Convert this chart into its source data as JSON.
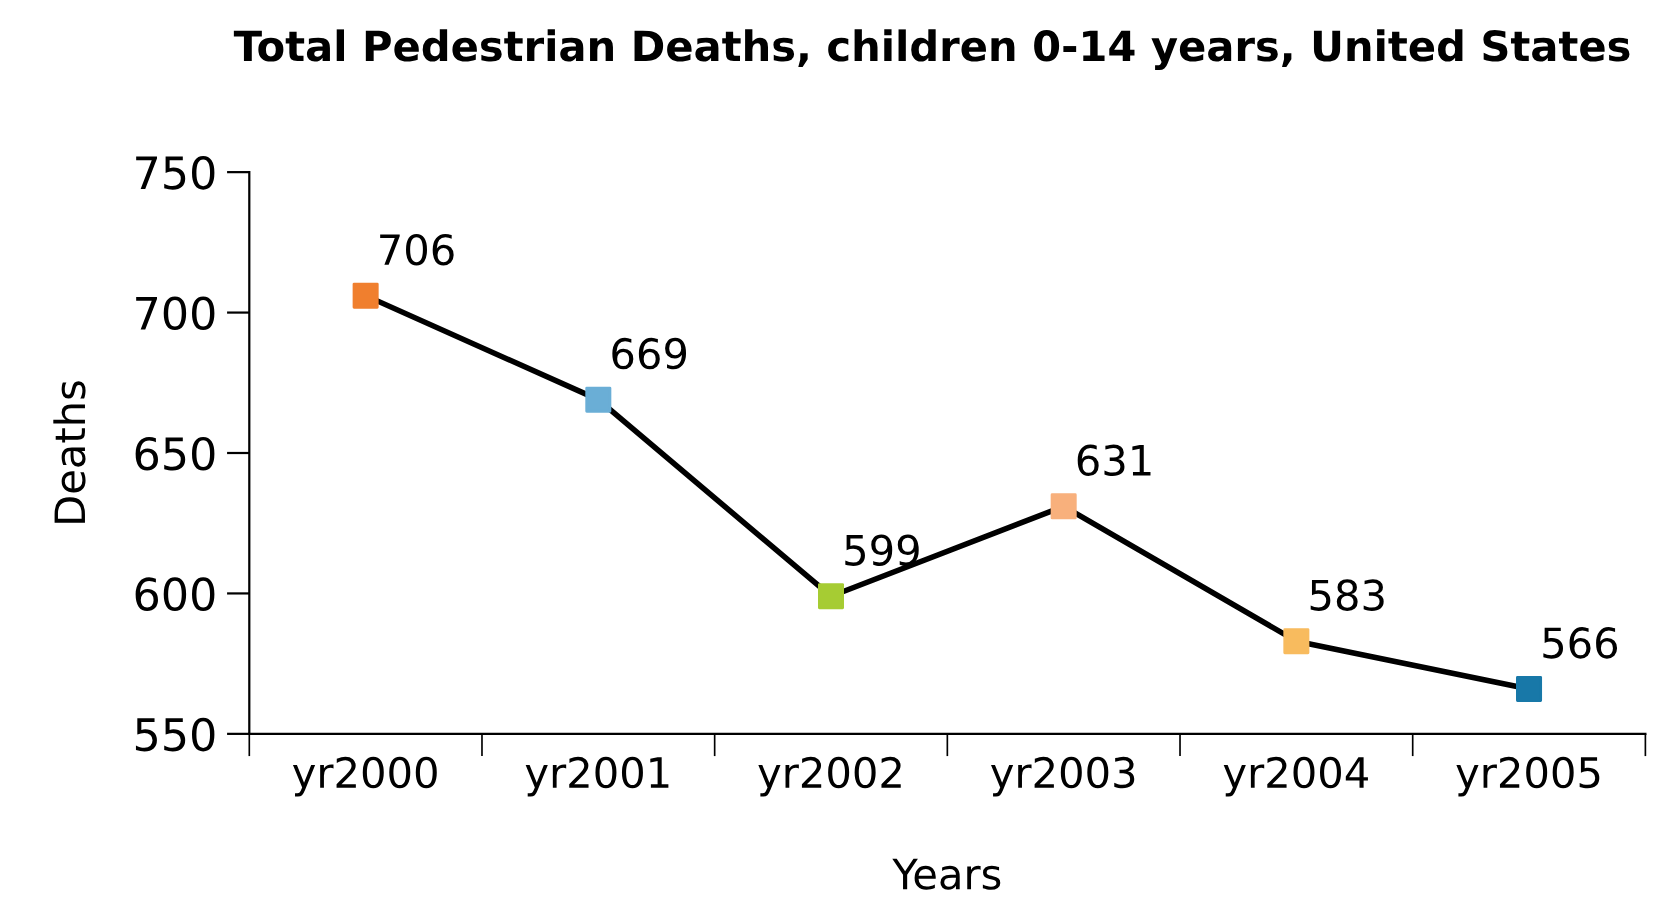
{
  "chart_data": {
    "type": "line",
    "title": "Total Pedestrian Deaths, children 0-14 years, United States",
    "xlabel": "Years",
    "ylabel": "Deaths",
    "categories": [
      "yr2000",
      "yr2001",
      "yr2002",
      "yr2003",
      "yr2004",
      "yr2005"
    ],
    "series": [
      {
        "color": "#000000",
        "values": [
          706,
          669,
          599,
          631,
          583,
          566
        ],
        "colors": [
          "#f07f2e",
          "#6aaed6",
          "#a6cc33",
          "#f8b07c",
          "#f8bb5e",
          "#1878a8"
        ]
      }
    ],
    "ylim": [
      550,
      750
    ],
    "yticks": [
      550,
      600,
      650,
      700,
      750
    ],
    "marker": "square",
    "line_style": "solid",
    "data_labels": true,
    "grid": false
  }
}
